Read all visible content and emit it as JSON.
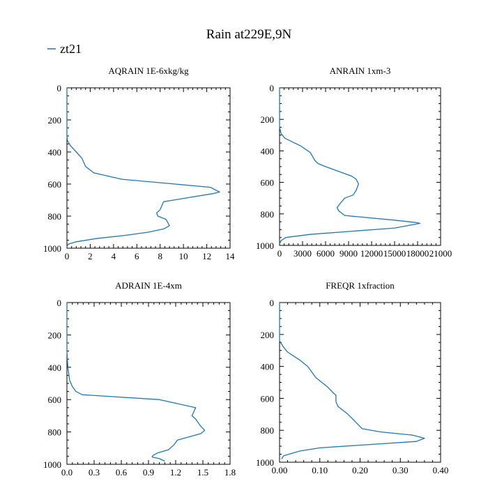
{
  "figure": {
    "title": "Rain at229E,9N",
    "legend": {
      "label": "zt21",
      "color": "#1f77b4"
    }
  },
  "chart_data": [
    {
      "type": "line",
      "title": "AQRAIN  1E-6xkg/kg",
      "xlabel": "",
      "ylabel": "",
      "xlim": [
        0,
        14
      ],
      "ylim": [
        1000,
        0
      ],
      "y_inverted": true,
      "xticks": [
        0,
        2,
        4,
        6,
        8,
        10,
        12,
        14
      ],
      "xtick_labels": [
        "0",
        "2",
        "4",
        "6",
        "8",
        "10",
        "12",
        "14"
      ],
      "yticks": [
        0,
        200,
        400,
        600,
        800,
        1000
      ],
      "ytick_labels": [
        "0",
        "200",
        "400",
        "600",
        "800",
        "1000"
      ],
      "series": [
        {
          "color": "#1f77b4",
          "x": [
            0,
            0,
            0.05,
            0.3,
            0.8,
            1.3,
            1.6,
            2.3,
            4.7,
            12.3,
            13.1,
            12.5,
            8.3,
            8.0,
            7.7,
            7.8,
            8.5,
            8.8,
            8.3,
            7.0,
            5.0,
            2.5,
            0.8,
            0.1,
            0
          ],
          "y": [
            0,
            300,
            330,
            360,
            400,
            440,
            490,
            530,
            570,
            620,
            650,
            660,
            710,
            760,
            780,
            800,
            820,
            860,
            880,
            900,
            920,
            940,
            960,
            975,
            990
          ]
        }
      ]
    },
    {
      "type": "line",
      "title": "ANRAIN  1xm-3",
      "xlabel": "",
      "ylabel": "",
      "xlim": [
        0,
        21000
      ],
      "ylim": [
        1000,
        0
      ],
      "y_inverted": true,
      "xticks": [
        0,
        3000,
        6000,
        9000,
        12000,
        15000,
        18000,
        21000
      ],
      "xtick_labels": [
        "0",
        "3000",
        "6000",
        "9000",
        "12000",
        "15000",
        "18000",
        "21000"
      ],
      "yticks": [
        0,
        200,
        400,
        600,
        800,
        1000
      ],
      "ytick_labels": [
        "0",
        "200",
        "400",
        "600",
        "800",
        "1000"
      ],
      "series": [
        {
          "color": "#1f77b4",
          "x": [
            0,
            0,
            200,
            700,
            2800,
            4000,
            4600,
            5000,
            6000,
            9400,
            10000,
            10300,
            10000,
            9600,
            8500,
            7800,
            7500,
            7700,
            8500,
            15000,
            17800,
            18300,
            15000,
            4000,
            800,
            200,
            0
          ],
          "y": [
            0,
            250,
            290,
            320,
            370,
            410,
            460,
            480,
            500,
            560,
            580,
            610,
            650,
            680,
            700,
            740,
            760,
            780,
            810,
            840,
            855,
            860,
            890,
            930,
            950,
            970,
            990
          ]
        }
      ]
    },
    {
      "type": "line",
      "title": "ADRAIN  1E-4xm",
      "xlabel": "",
      "ylabel": "",
      "xlim": [
        0,
        1.8
      ],
      "ylim": [
        1000,
        0
      ],
      "y_inverted": true,
      "xticks": [
        0.0,
        0.3,
        0.6,
        0.9,
        1.2,
        1.5,
        1.8
      ],
      "xtick_labels": [
        "0.0",
        "0.3",
        "0.6",
        "0.9",
        "1.2",
        "1.5",
        "1.8"
      ],
      "yticks": [
        0,
        200,
        400,
        600,
        800,
        1000
      ],
      "ytick_labels": [
        "0",
        "200",
        "400",
        "600",
        "800",
        "1000"
      ],
      "series": [
        {
          "color": "#1f77b4",
          "x": [
            0,
            0,
            0.01,
            0.03,
            0.06,
            0.1,
            0.17,
            1.02,
            1.42,
            1.38,
            1.42,
            1.47,
            1.52,
            1.48,
            1.22,
            1.18,
            1.12,
            1.0,
            0.95,
            0.94,
            1.02,
            1.08
          ],
          "y": [
            0,
            300,
            400,
            480,
            520,
            550,
            570,
            600,
            650,
            700,
            720,
            760,
            790,
            810,
            850,
            880,
            910,
            930,
            945,
            955,
            965,
            980
          ]
        }
      ]
    },
    {
      "type": "line",
      "title": "FREQR  1xfraction",
      "xlabel": "",
      "ylabel": "",
      "xlim": [
        0,
        0.4
      ],
      "ylim": [
        1000,
        0
      ],
      "y_inverted": true,
      "xticks": [
        0.0,
        0.1,
        0.2,
        0.3,
        0.4
      ],
      "xtick_labels": [
        "0.00",
        "0.10",
        "0.20",
        "0.30",
        "0.40"
      ],
      "yticks": [
        0,
        200,
        400,
        600,
        800,
        1000
      ],
      "ytick_labels": [
        "0",
        "200",
        "400",
        "600",
        "800",
        "1000"
      ],
      "series": [
        {
          "color": "#1f77b4",
          "x": [
            0,
            0,
            0.005,
            0.01,
            0.02,
            0.05,
            0.06,
            0.07,
            0.09,
            0.11,
            0.12,
            0.135,
            0.14,
            0.14,
            0.145,
            0.17,
            0.19,
            0.205,
            0.25,
            0.33,
            0.36,
            0.34,
            0.1,
            0.05,
            0.01,
            0.005
          ],
          "y": [
            0,
            240,
            260,
            280,
            310,
            360,
            380,
            400,
            470,
            510,
            530,
            570,
            580,
            620,
            650,
            700,
            750,
            790,
            810,
            830,
            850,
            870,
            910,
            930,
            960,
            980
          ]
        }
      ]
    }
  ]
}
